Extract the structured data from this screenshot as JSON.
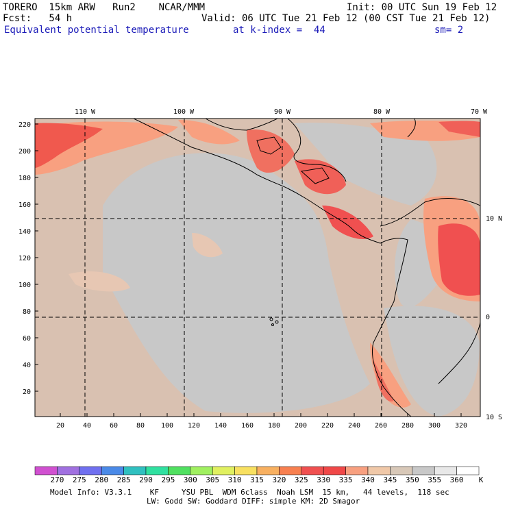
{
  "header": {
    "line1_left": "TORERO  15km ARW   Run2    NCAR/MMM",
    "line1_right": "Init: 00 UTC Sun 19 Feb 12",
    "line2_left": "Fcst:   54 h",
    "line2_right": "Valid: 06 UTC Tue 21 Feb 12 (00 CST Tue 21 Feb 12)",
    "line3_field": "Equivalent potential temperature",
    "line3_level": "at k-index =  44",
    "line3_smooth": "sm= 2"
  },
  "top_axis_labels": [
    "110 W",
    "100 W",
    "90 W",
    "80 W",
    "70 W"
  ],
  "right_axis_labels": [
    "10 N",
    "0",
    "10 S"
  ],
  "left_axis_labels": [
    "220",
    "200",
    "180",
    "160",
    "140",
    "120",
    "100",
    "80",
    "60",
    "40",
    "20"
  ],
  "bottom_axis_labels": [
    "20",
    "40",
    "60",
    "80",
    "100",
    "120",
    "140",
    "160",
    "180",
    "200",
    "220",
    "240",
    "260",
    "280",
    "300",
    "320"
  ],
  "colorbar": {
    "labels": [
      "270",
      "275",
      "280",
      "285",
      "290",
      "295",
      "300",
      "305",
      "310",
      "315",
      "320",
      "325",
      "330",
      "335",
      "340",
      "345",
      "350",
      "355",
      "360"
    ],
    "unit": "K",
    "colors": [
      "#d050d0",
      "#a070e0",
      "#7070f0",
      "#4a8ae8",
      "#30c0c0",
      "#30e0a0",
      "#50e060",
      "#a0f060",
      "#e0f060",
      "#f8e060",
      "#f8b060",
      "#f88050",
      "#f05050",
      "#f04848",
      "#f8a080",
      "#f0c8a8",
      "#d8c8b8",
      "#c8c8c8",
      "#e8e8e8",
      "#ffffff"
    ]
  },
  "footer": {
    "line1": "Model Info: V3.3.1    KF     YSU PBL  WDM 6class  Noah LSM  15 km,   44 levels,  118 sec",
    "line2": "LW: Godd SW: Goddard DIFF: simple KM: 2D Smagor"
  }
}
